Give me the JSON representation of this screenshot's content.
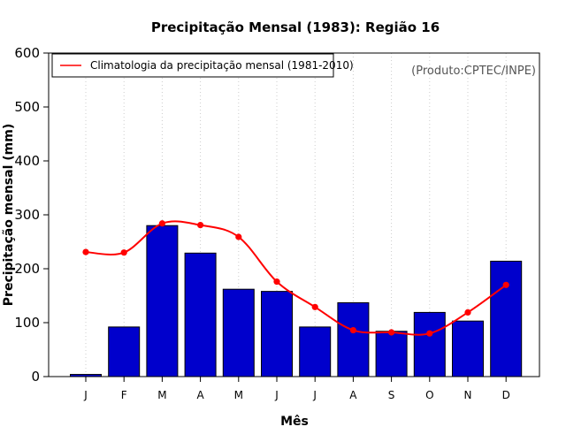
{
  "chart_data": {
    "type": "bar",
    "title": "Precipitação Mensal (1983): Região 16",
    "xlabel": "Mês",
    "ylabel": "Precipitação mensal (mm)",
    "ylim": [
      0,
      600
    ],
    "yticks": [
      0,
      100,
      200,
      300,
      400,
      500,
      600
    ],
    "categories": [
      "J",
      "F",
      "M",
      "A",
      "M",
      "J",
      "J",
      "A",
      "S",
      "O",
      "N",
      "D"
    ],
    "series": [
      {
        "name": "Precipitação mensal 1983",
        "type": "bar",
        "color": "#0000CC",
        "values": [
          4,
          92,
          280,
          229,
          162,
          158,
          92,
          137,
          84,
          119,
          103,
          214
        ]
      },
      {
        "name": "Climatologia da precipitação mensal (1981-2010)",
        "type": "line",
        "color": "#FF0000",
        "values": [
          231,
          230,
          284,
          281,
          259,
          176,
          129,
          86,
          82,
          80,
          119,
          170
        ]
      }
    ],
    "legend": {
      "position": "top-left",
      "entries": [
        "Climatologia da precipitação mensal (1981-2010)"
      ]
    },
    "grid": "vertical-dotted",
    "annotation": "(Produto:CPTEC/INPE)"
  }
}
